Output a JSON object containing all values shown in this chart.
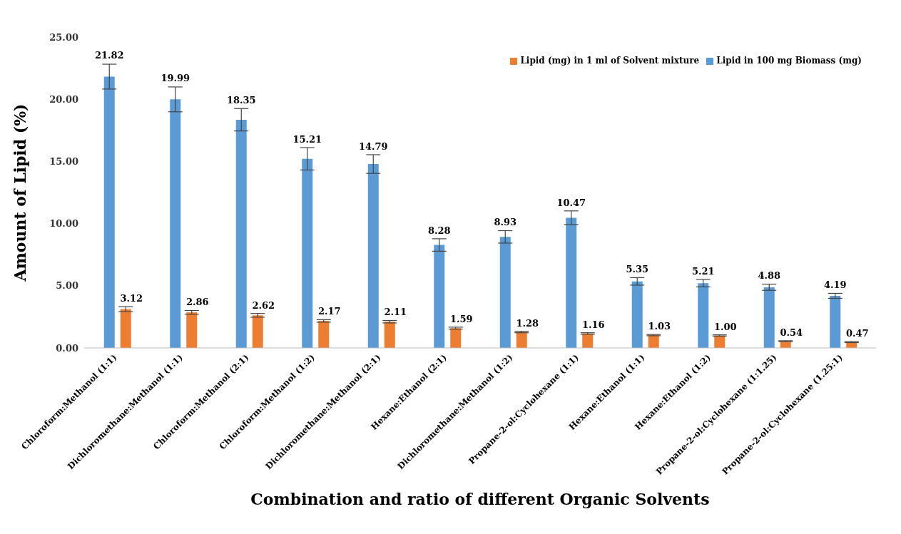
{
  "chart_data": {
    "type": "bar",
    "xlabel": "Combination and ratio of different Organic Solvents",
    "ylabel": "Amount of Lipid (%)",
    "categories": [
      "Chloroform:Methanol (1:1)",
      "Dichloromethane:Methanol (1:1)",
      "Chloroform:Methanol (2:1)",
      "Chloroform:Methanol (1:2)",
      "Dichloromethane:Methanol (2:1)",
      "Hexane:Ethanol (2:1)",
      "Dichloromethane:Methanol (1:2)",
      "Propane-2-ol:Cyclohexane (1:1)",
      "Hexane:Ethanol (1:1)",
      "Hexane:Ethanol (1:2)",
      "Propane-2-ol:Cyclohexane (1:1.25)",
      "Propane-2-ol:Cyclohexane (1.25:1)"
    ],
    "series": [
      {
        "name": "Lipid in 100 mg Biomass (mg)",
        "color": "#5b9bd5",
        "values": [
          21.82,
          19.99,
          18.35,
          15.21,
          14.79,
          8.28,
          8.93,
          10.47,
          5.35,
          5.21,
          4.88,
          4.19
        ],
        "errors": [
          1.0,
          1.0,
          0.9,
          0.9,
          0.75,
          0.5,
          0.5,
          0.55,
          0.3,
          0.3,
          0.25,
          0.2
        ],
        "value_labels": [
          "21.82",
          "19.99",
          "18.35",
          "15.21",
          "14.79",
          "8.28",
          "8.93",
          "10.47",
          "5.35",
          "5.21",
          "4.88",
          "4.19"
        ]
      },
      {
        "name": "Lipid (mg) in 1 ml of Solvent mixture",
        "color": "#ed7d31",
        "values": [
          3.12,
          2.86,
          2.62,
          2.17,
          2.11,
          1.59,
          1.28,
          1.16,
          1.03,
          1.0,
          0.54,
          0.47
        ],
        "errors": [
          0.2,
          0.15,
          0.15,
          0.1,
          0.1,
          0.08,
          0.06,
          0.06,
          0.05,
          0.05,
          0.04,
          0.04
        ],
        "value_labels": [
          "3.12",
          "2.86",
          "2.62",
          "2.17",
          "2.11",
          "1.59",
          "1.28",
          "1.16",
          "1.03",
          "1.00",
          "0.54",
          "0.47"
        ]
      }
    ],
    "ylim": [
      0,
      25
    ],
    "yticks": [
      {
        "value": 0,
        "label": "0.00"
      },
      {
        "value": 5,
        "label": "5.00"
      },
      {
        "value": 10,
        "label": "10.00"
      },
      {
        "value": 15,
        "label": "15.00"
      },
      {
        "value": 20,
        "label": "20.00"
      },
      {
        "value": 25,
        "label": "25.00"
      }
    ],
    "grid": false,
    "legend": "top right"
  }
}
